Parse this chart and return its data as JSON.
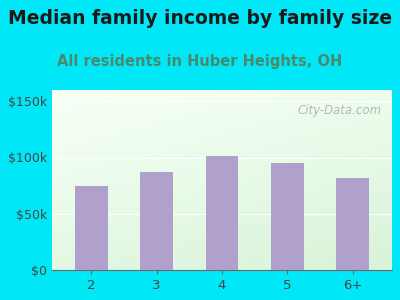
{
  "title": "Median family income by family size",
  "subtitle": "All residents in Huber Heights, OH",
  "categories": [
    "2",
    "3",
    "4",
    "5",
    "6+"
  ],
  "values": [
    75000,
    87000,
    101000,
    95000,
    82000
  ],
  "bar_color": "#b0a0cc",
  "title_fontsize": 13.5,
  "subtitle_fontsize": 10.5,
  "subtitle_color": "#4a8a6a",
  "title_color": "#1a1a1a",
  "bg_outer": "#00e8f8",
  "ylim": [
    0,
    160000
  ],
  "yticks": [
    0,
    50000,
    100000,
    150000
  ],
  "ytick_labels": [
    "$0",
    "$50k",
    "$100k",
    "$150k"
  ],
  "watermark": "City-Data.com"
}
